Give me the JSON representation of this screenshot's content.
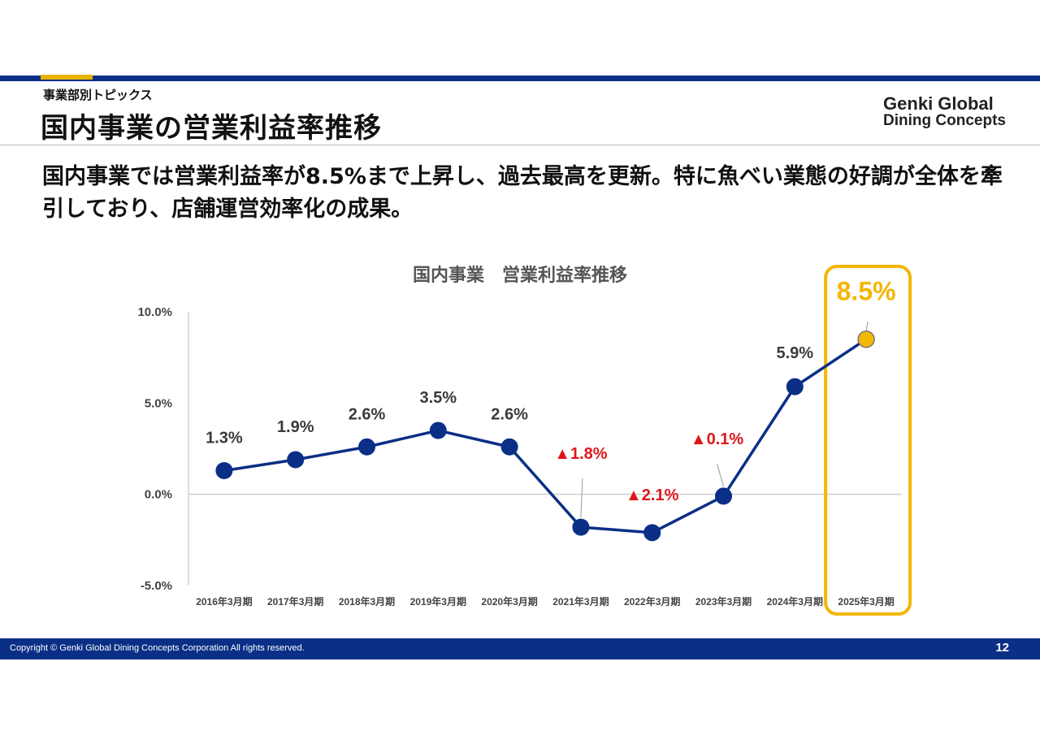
{
  "header": {
    "section_label": "事業部別トピックス",
    "title": "国内事業の営業利益率推移",
    "logo_line1": "Genki Global",
    "logo_line2": "Dining Concepts"
  },
  "headline": "国内事業では営業利益率が8.5%まで上昇し、過去最高を更新。特に魚べい業態の好調が全体を牽引しており、店舗運営効率化の成果。",
  "chart_data": {
    "type": "line",
    "title": "国内事業　営業利益率推移",
    "categories": [
      "2016年3月期",
      "2017年3月期",
      "2018年3月期",
      "2019年3月期",
      "2020年3月期",
      "2021年3月期",
      "2022年3月期",
      "2023年3月期",
      "2024年3月期",
      "2025年3月期"
    ],
    "values": [
      1.3,
      1.9,
      2.6,
      3.5,
      2.6,
      -1.8,
      -2.1,
      -0.1,
      5.9,
      8.5
    ],
    "data_labels": [
      "1.3%",
      "1.9%",
      "2.6%",
      "3.5%",
      "2.6%",
      "▲1.8%",
      "▲2.1%",
      "▲0.1%",
      "5.9%",
      "8.5%"
    ],
    "y_ticks": [
      "10.0%",
      "5.0%",
      "0.0%",
      "-5.0%"
    ],
    "ylim": [
      -5,
      10
    ],
    "highlight_index": 9,
    "colors": {
      "line": "#0b2f86",
      "highlight": "#f2b705",
      "negative_label": "#e0161b",
      "label": "#3a3a3a",
      "axis": "#d0d0d0"
    }
  },
  "footer": {
    "copyright": "Copyright © Genki Global Dining Concepts Corporation All rights reserved.",
    "page_number": "12"
  }
}
